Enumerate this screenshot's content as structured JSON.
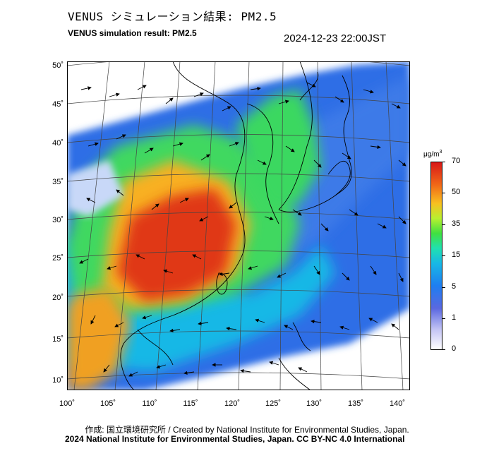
{
  "title_jp": "VENUS シミュレーション結果: PM2.5",
  "title_en": "VENUS simulation result: PM2.5",
  "datetime": "2024-12-23 22:00JST",
  "y_ticks": [
    "50˚",
    "45˚",
    "40˚",
    "35˚",
    "30˚",
    "25˚",
    "20˚",
    "15˚",
    "10˚"
  ],
  "x_ticks": [
    "100˚",
    "105˚",
    "110˚",
    "115˚",
    "120˚",
    "125˚",
    "130˚",
    "135˚",
    "140˚"
  ],
  "colorbar": {
    "unit_base": "μg/m",
    "unit_exp": "3",
    "ticks": [
      "70",
      "50",
      "35",
      "15",
      "5",
      "1",
      "0"
    ],
    "colors": [
      "#ffffff",
      "#c8c8f5",
      "#5a68e0",
      "#1e7ef0",
      "#18b8e6",
      "#20e0b0",
      "#40e040",
      "#b8f030",
      "#f8c020",
      "#f06818",
      "#d81818"
    ]
  },
  "credit_line": "作成: 国立環境研究所 / Created by National Institute for Environmental Studies, Japan.",
  "copyright_line": "2024 National Institute for Environmental Studies, Japan. CC BY-NC 4.0 International"
}
